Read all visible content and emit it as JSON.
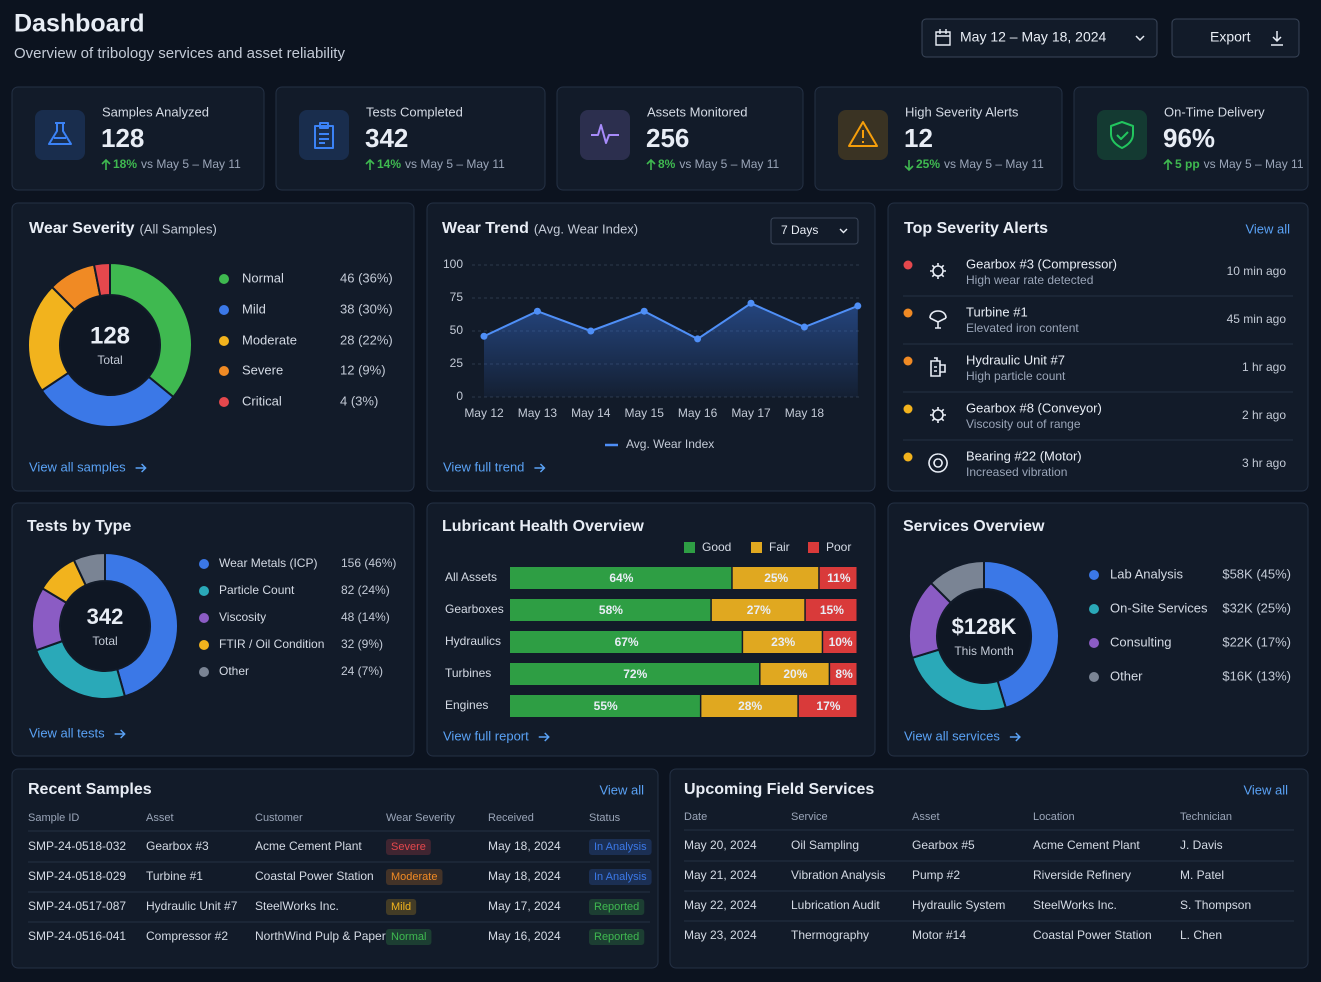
{
  "header": {
    "title": "Dashboard",
    "subtitle": "Overview of tribology services and asset reliability",
    "date_range": "May 12 – May 18, 2024",
    "export": "Export"
  },
  "kpis": [
    {
      "label": "Samples Analyzed",
      "value": "128",
      "change": "18%",
      "trend": "up",
      "comparison": "vs May 5 – May 11",
      "icon": "flask",
      "color": "#3b82f6"
    },
    {
      "label": "Tests Completed",
      "value": "342",
      "change": "14%",
      "trend": "up",
      "comparison": "vs May 5 – May 11",
      "icon": "clipboard",
      "color": "#3b82f6"
    },
    {
      "label": "Assets Monitored",
      "value": "256",
      "change": "8%",
      "trend": "up",
      "comparison": "vs May 5 – May 11",
      "icon": "pulse",
      "color": "#a78bfa"
    },
    {
      "label": "High Severity Alerts",
      "value": "12",
      "change": "25%",
      "trend": "down",
      "comparison": "vs May 5 – May 11",
      "icon": "warning",
      "color": "#f59e0b"
    },
    {
      "label": "On-Time Delivery",
      "value": "96%",
      "change": "5 pp",
      "trend": "up",
      "comparison": "vs May 5 – May 11",
      "icon": "shield",
      "color": "#22c55e"
    }
  ],
  "chart_data": [
    {
      "type": "donut",
      "title": "Wear Severity",
      "subtitle": "(All Samples)",
      "total": 128,
      "total_label": "Total",
      "categories": [
        "Normal",
        "Mild",
        "Moderate",
        "Severe",
        "Critical"
      ],
      "values": [
        46,
        38,
        28,
        12,
        4
      ],
      "value_labels": [
        "46 (36%)",
        "38 (30%)",
        "28 (22%)",
        "12 (9%)",
        "4 (3%)"
      ],
      "colors": [
        "#3fb950",
        "#3b78e7",
        "#f2b31d",
        "#f08a24",
        "#e5484d"
      ],
      "link": "View all samples"
    },
    {
      "type": "line",
      "title": "Wear Trend",
      "subtitle": "(Avg. Wear Index)",
      "dropdown": "7 Days",
      "categories": [
        "May 12",
        "May 13",
        "May 14",
        "May 15",
        "May 16",
        "May 17",
        "May 18",
        null
      ],
      "series": [
        {
          "name": "Avg. Wear Index",
          "color": "#4f8ff7",
          "values": [
            46,
            65,
            50,
            65,
            44,
            71,
            53,
            69
          ]
        }
      ],
      "ylim": [
        0,
        100
      ],
      "yticks": [
        0,
        25,
        50,
        75,
        100
      ],
      "grid": true,
      "link": "View full trend"
    },
    {
      "type": "donut",
      "title": "Tests by Type",
      "total": 342,
      "total_label": "Total",
      "categories": [
        "Wear Metals (ICP)",
        "Particle Count",
        "Viscosity",
        "FTIR / Oil Condition",
        "Other"
      ],
      "values": [
        156,
        82,
        48,
        32,
        24
      ],
      "value_labels": [
        "156 (46%)",
        "82 (24%)",
        "48 (14%)",
        "32 (9%)",
        "24 (7%)"
      ],
      "colors": [
        "#3b78e7",
        "#2aa9b8",
        "#8b5cc4",
        "#f2b31d",
        "#7a8494"
      ],
      "link": "View all tests"
    },
    {
      "type": "stacked_bar",
      "title": "Lubricant Health Overview",
      "categories": [
        "All Assets",
        "Gearboxes",
        "Hydraulics",
        "Turbines",
        "Engines"
      ],
      "series": [
        {
          "name": "Good",
          "color": "#2e9e44",
          "values": [
            64,
            58,
            67,
            72,
            55
          ],
          "value_labels": [
            "64%",
            "58%",
            "67%",
            "72%",
            "55%"
          ]
        },
        {
          "name": "Fair",
          "color": "#e0a820",
          "values": [
            25,
            27,
            23,
            20,
            28
          ],
          "value_labels": [
            "25%",
            "27%",
            "23%",
            "20%",
            "28%"
          ]
        },
        {
          "name": "Poor",
          "color": "#d93a3a",
          "values": [
            11,
            15,
            10,
            8,
            17
          ],
          "value_labels": [
            "11%",
            "15%",
            "10%",
            "8%",
            "17%"
          ]
        }
      ],
      "xlim": [
        0,
        100
      ],
      "link": "View full report"
    },
    {
      "type": "donut",
      "title": "Services Overview",
      "total": "$128K",
      "total_label": "This Month",
      "categories": [
        "Lab Analysis",
        "On-Site Services",
        "Consulting",
        "Other"
      ],
      "values": [
        58000,
        32000,
        22000,
        16000
      ],
      "value_labels": [
        "$58K (45%)",
        "$32K (25%)",
        "$22K (17%)",
        "$16K (13%)"
      ],
      "colors": [
        "#3b78e7",
        "#2aa9b8",
        "#8b5cc4",
        "#7a8494"
      ],
      "link": "View all services"
    }
  ],
  "alerts": {
    "title": "Top Severity Alerts",
    "link": "View all",
    "items": [
      {
        "name": "Gearbox #3 (Compressor)",
        "detail": "High wear rate detected",
        "time": "10 min ago",
        "color": "#e5484d",
        "icon": "gear"
      },
      {
        "name": "Turbine #1",
        "detail": "Elevated iron content",
        "time": "45 min ago",
        "color": "#f08a24",
        "icon": "turbine"
      },
      {
        "name": "Hydraulic Unit #7",
        "detail": "High particle count",
        "time": "1 hr ago",
        "color": "#f08a24",
        "icon": "hydraulic"
      },
      {
        "name": "Gearbox #8 (Conveyor)",
        "detail": "Viscosity out of range",
        "time": "2 hr ago",
        "color": "#f2b31d",
        "icon": "gear"
      },
      {
        "name": "Bearing #22 (Motor)",
        "detail": "Increased vibration",
        "time": "3 hr ago",
        "color": "#f2b31d",
        "icon": "bearing"
      }
    ]
  },
  "recent_samples": {
    "title": "Recent Samples",
    "link": "View all",
    "columns": [
      "Sample ID",
      "Asset",
      "Customer",
      "Wear Severity",
      "Received",
      "Status"
    ],
    "rows": [
      [
        "SMP-24-0518-032",
        "Gearbox #3",
        "Acme Cement Plant",
        "Severe",
        "May 18, 2024",
        "In Analysis"
      ],
      [
        "SMP-24-0518-029",
        "Turbine #1",
        "Coastal Power Station",
        "Moderate",
        "May 18, 2024",
        "In Analysis"
      ],
      [
        "SMP-24-0517-087",
        "Hydraulic Unit #7",
        "SteelWorks Inc.",
        "Mild",
        "May 17, 2024",
        "Reported"
      ],
      [
        "SMP-24-0516-041",
        "Compressor #2",
        "NorthWind Pulp & Paper",
        "Normal",
        "May 16, 2024",
        "Reported"
      ]
    ],
    "badge_colors": [
      [
        "#e5484d",
        "#3b78e7"
      ],
      [
        "#f08a24",
        "#3b78e7"
      ],
      [
        "#f2b31d",
        "#3fb950"
      ],
      [
        "#3fb950",
        "#3fb950"
      ]
    ]
  },
  "field_services": {
    "title": "Upcoming Field Services",
    "link": "View all",
    "columns": [
      "Date",
      "Service",
      "Asset",
      "Location",
      "Technician"
    ],
    "rows": [
      [
        "May 20, 2024",
        "Oil Sampling",
        "Gearbox #5",
        "Acme Cement Plant",
        "J. Davis"
      ],
      [
        "May 21, 2024",
        "Vibration Analysis",
        "Pump #2",
        "Riverside Refinery",
        "M. Patel"
      ],
      [
        "May 22, 2024",
        "Lubrication Audit",
        "Hydraulic System",
        "SteelWorks Inc.",
        "S. Thompson"
      ],
      [
        "May 23, 2024",
        "Thermography",
        "Motor #14",
        "Coastal Power Station",
        "L. Chen"
      ]
    ]
  }
}
